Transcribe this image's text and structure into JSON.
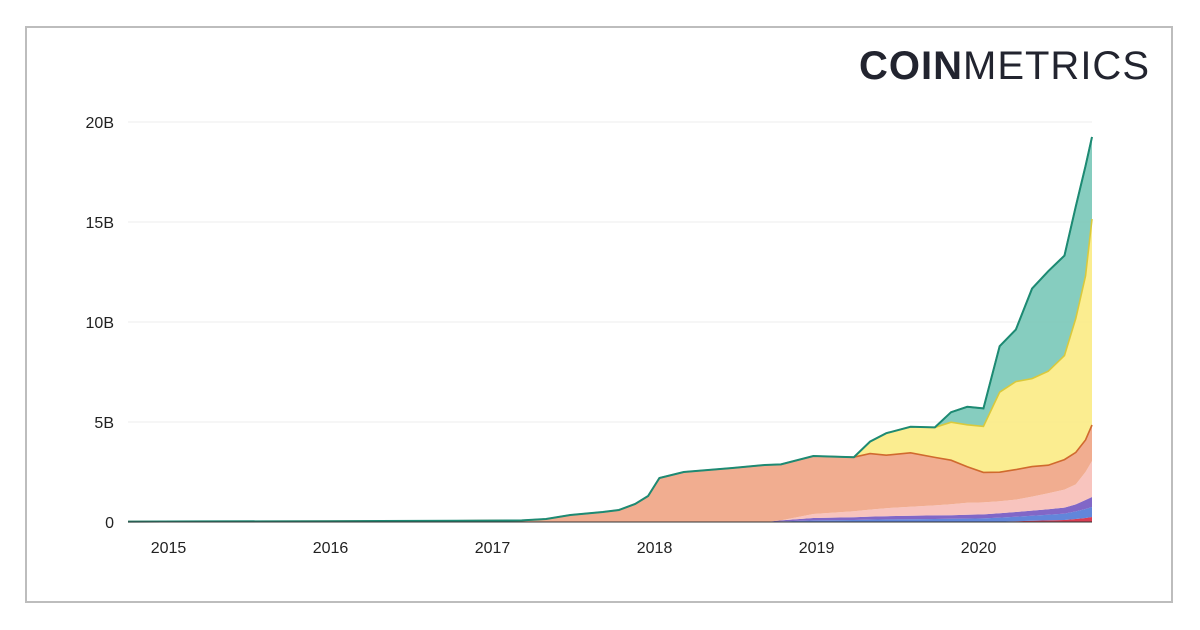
{
  "logo": {
    "bold": "COIN",
    "light": "METRICS"
  },
  "colors": {
    "teal": "#7fcabc",
    "teal_line": "#1d8a73",
    "yellow": "#fbec8a",
    "yellow_line": "#d9c93c",
    "salmon": "#f0a98a",
    "salmon_line": "#d06a2e",
    "pink": "#f8c1bb",
    "purple": "#7a5fc4",
    "blue": "#5a7fd8",
    "red": "#d8334a",
    "grid": "#ececec",
    "axis": "#333333"
  },
  "chart_data": {
    "type": "area",
    "title": "",
    "xlabel": "",
    "ylabel": "",
    "stacked": true,
    "xlim": [
      2014.77,
      2020.72
    ],
    "ylim": [
      0,
      20
    ],
    "x_ticks": [
      "2015",
      "2016",
      "2017",
      "2018",
      "2019",
      "2020"
    ],
    "y_ticks": [
      "0",
      "5B",
      "10B",
      "15B",
      "20B"
    ],
    "grid": true,
    "legend": "none",
    "x": [
      2014.77,
      2015.2,
      2016.0,
      2016.8,
      2017.2,
      2017.35,
      2017.5,
      2017.7,
      2017.8,
      2017.9,
      2017.98,
      2018.05,
      2018.2,
      2018.5,
      2018.7,
      2018.8,
      2019.0,
      2019.25,
      2019.35,
      2019.45,
      2019.6,
      2019.75,
      2019.85,
      2019.95,
      2020.05,
      2020.15,
      2020.25,
      2020.35,
      2020.45,
      2020.55,
      2020.62,
      2020.68,
      2020.72
    ],
    "series": [
      {
        "key": "red",
        "values": [
          0,
          0,
          0,
          0,
          0,
          0,
          0,
          0,
          0,
          0,
          0,
          0,
          0,
          0,
          0,
          0,
          0,
          0,
          0,
          0,
          0,
          0,
          0,
          0,
          0,
          0.02,
          0.04,
          0.06,
          0.08,
          0.1,
          0.15,
          0.2,
          0.25
        ]
      },
      {
        "key": "blue",
        "values": [
          0,
          0,
          0,
          0,
          0,
          0,
          0,
          0,
          0,
          0,
          0,
          0,
          0,
          0,
          0,
          0.03,
          0.08,
          0.1,
          0.12,
          0.13,
          0.14,
          0.15,
          0.16,
          0.17,
          0.18,
          0.2,
          0.22,
          0.25,
          0.28,
          0.32,
          0.38,
          0.45,
          0.5
        ]
      },
      {
        "key": "purple",
        "values": [
          0,
          0,
          0,
          0,
          0,
          0,
          0,
          0,
          0,
          0,
          0,
          0,
          0,
          0,
          0,
          0.05,
          0.12,
          0.14,
          0.15,
          0.16,
          0.17,
          0.18,
          0.18,
          0.19,
          0.2,
          0.22,
          0.24,
          0.26,
          0.28,
          0.3,
          0.35,
          0.45,
          0.5
        ]
      },
      {
        "key": "pink",
        "values": [
          0,
          0,
          0,
          0,
          0,
          0,
          0,
          0,
          0,
          0,
          0,
          0,
          0,
          0,
          0,
          0,
          0.2,
          0.3,
          0.35,
          0.4,
          0.45,
          0.5,
          0.55,
          0.6,
          0.6,
          0.6,
          0.62,
          0.7,
          0.8,
          0.9,
          1.0,
          1.4,
          1.8
        ]
      },
      {
        "key": "salmon",
        "values": [
          0.02,
          0.03,
          0.04,
          0.06,
          0.08,
          0.15,
          0.35,
          0.5,
          0.6,
          0.9,
          1.3,
          2.2,
          2.5,
          2.7,
          2.85,
          2.8,
          2.9,
          2.7,
          2.8,
          2.65,
          2.7,
          2.4,
          2.2,
          1.8,
          1.5,
          1.45,
          1.5,
          1.5,
          1.4,
          1.5,
          1.6,
          1.6,
          1.8
        ]
      },
      {
        "key": "yellow",
        "values": [
          0,
          0,
          0,
          0,
          0,
          0,
          0,
          0,
          0,
          0,
          0,
          0,
          0,
          0,
          0,
          0,
          0,
          0,
          0.6,
          1.1,
          1.3,
          1.5,
          1.9,
          2.1,
          2.3,
          4.0,
          4.4,
          4.4,
          4.7,
          5.2,
          6.7,
          8.2,
          10.3
        ]
      },
      {
        "key": "teal",
        "values": [
          0,
          0,
          0,
          0,
          0,
          0,
          0,
          0,
          0,
          0,
          0,
          0,
          0,
          0,
          0,
          0,
          0,
          0,
          0,
          0,
          0,
          0,
          0.5,
          0.9,
          0.9,
          2.3,
          2.6,
          4.5,
          5.0,
          5.0,
          5.6,
          5.5,
          4.1
        ]
      }
    ]
  }
}
